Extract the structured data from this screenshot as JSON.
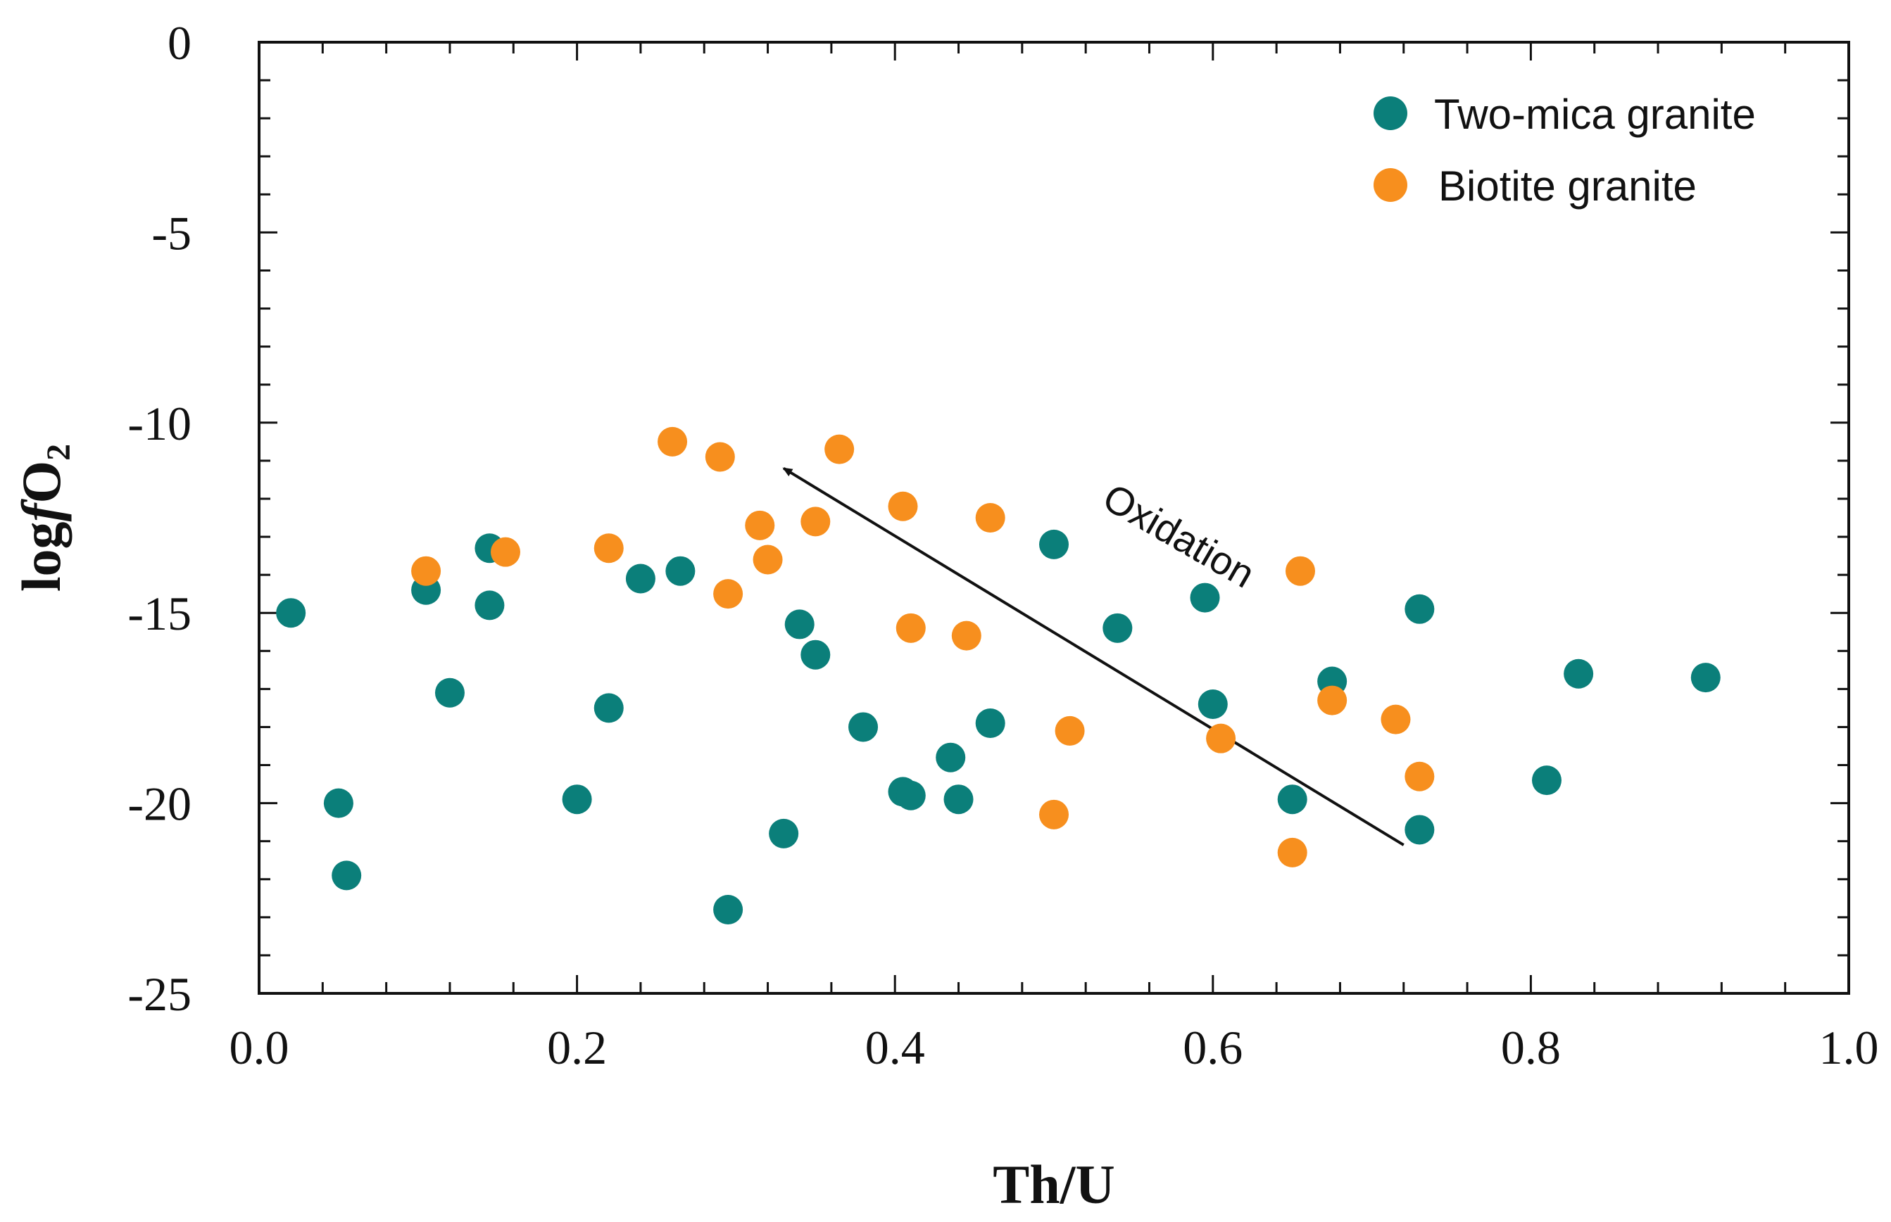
{
  "chart_data": {
    "type": "scatter",
    "title": "",
    "xlabel": "Th/U",
    "ylabel": {
      "prefix": "log",
      "italic": "f",
      "species": "O",
      "subscript": "2"
    },
    "xlim": [
      0.0,
      1.0
    ],
    "ylim": [
      -25,
      0
    ],
    "x_ticks": [
      "0.0",
      "0.2",
      "0.4",
      "0.6",
      "0.8",
      "1.0"
    ],
    "y_ticks": [
      "0",
      "-5",
      "-10",
      "-15",
      "-20",
      "-25"
    ],
    "legend_position": "top-right",
    "series": [
      {
        "name": "Two-mica granite",
        "color": "#0b7f7a",
        "points": [
          [
            0.02,
            -15.0
          ],
          [
            0.05,
            -20.0
          ],
          [
            0.055,
            -21.9
          ],
          [
            0.105,
            -14.4
          ],
          [
            0.12,
            -17.1
          ],
          [
            0.145,
            -13.3
          ],
          [
            0.145,
            -14.8
          ],
          [
            0.2,
            -19.9
          ],
          [
            0.22,
            -17.5
          ],
          [
            0.24,
            -14.1
          ],
          [
            0.265,
            -13.9
          ],
          [
            0.295,
            -22.8
          ],
          [
            0.33,
            -20.8
          ],
          [
            0.34,
            -15.3
          ],
          [
            0.35,
            -16.1
          ],
          [
            0.38,
            -18.0
          ],
          [
            0.405,
            -19.7
          ],
          [
            0.41,
            -19.8
          ],
          [
            0.435,
            -18.8
          ],
          [
            0.44,
            -19.9
          ],
          [
            0.46,
            -17.9
          ],
          [
            0.5,
            -13.2
          ],
          [
            0.54,
            -15.4
          ],
          [
            0.595,
            -14.6
          ],
          [
            0.6,
            -17.4
          ],
          [
            0.65,
            -19.9
          ],
          [
            0.675,
            -16.8
          ],
          [
            0.73,
            -14.9
          ],
          [
            0.73,
            -20.7
          ],
          [
            0.81,
            -19.4
          ],
          [
            0.83,
            -16.6
          ],
          [
            0.91,
            -16.7
          ]
        ]
      },
      {
        "name": "Biotite granite",
        "color": "#f78f1e",
        "points": [
          [
            0.105,
            -13.9
          ],
          [
            0.155,
            -13.4
          ],
          [
            0.22,
            -13.3
          ],
          [
            0.26,
            -10.5
          ],
          [
            0.29,
            -10.9
          ],
          [
            0.295,
            -14.5
          ],
          [
            0.315,
            -12.7
          ],
          [
            0.32,
            -13.6
          ],
          [
            0.35,
            -12.6
          ],
          [
            0.365,
            -10.7
          ],
          [
            0.405,
            -12.2
          ],
          [
            0.41,
            -15.4
          ],
          [
            0.445,
            -15.6
          ],
          [
            0.46,
            -12.5
          ],
          [
            0.5,
            -20.3
          ],
          [
            0.51,
            -18.1
          ],
          [
            0.605,
            -18.3
          ],
          [
            0.65,
            -21.3
          ],
          [
            0.655,
            -13.9
          ],
          [
            0.675,
            -17.3
          ],
          [
            0.715,
            -17.8
          ],
          [
            0.73,
            -19.3
          ]
        ]
      }
    ],
    "annotations": [
      {
        "text": "Oxidation",
        "arrow_from": [
          0.72,
          -21.1
        ],
        "arrow_to": [
          0.33,
          -11.2
        ]
      }
    ]
  }
}
